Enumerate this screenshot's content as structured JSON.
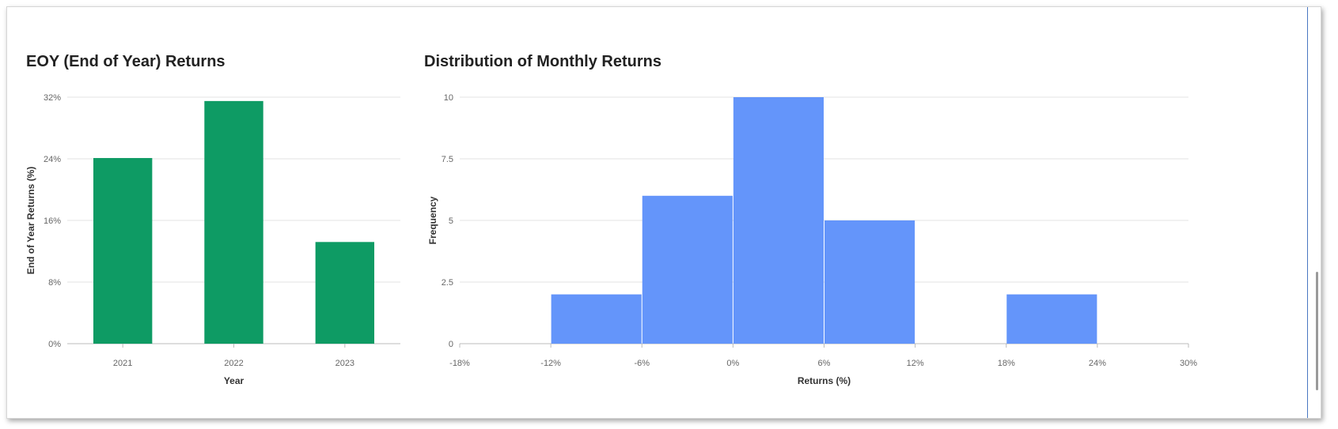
{
  "colors": {
    "eoy_bar": "#0e9b64",
    "dist_bar": "#6495fa",
    "grid": "#e3e3e3",
    "axis": "#bbbbbb"
  },
  "eoy": {
    "title": "EOY (End of Year) Returns",
    "chart_data": {
      "type": "bar",
      "categories": [
        "2021",
        "2022",
        "2023"
      ],
      "values": [
        24.1,
        31.5,
        13.2
      ],
      "xlabel": "Year",
      "ylabel": "End of Year Returns (%)",
      "ylim": [
        0,
        32
      ],
      "yticks": [
        "0%",
        "8%",
        "16%",
        "24%",
        "32%"
      ],
      "grid": true
    }
  },
  "dist": {
    "title": "Distribution of Monthly Returns",
    "chart_data": {
      "type": "bar",
      "subtype": "histogram",
      "bins": [
        {
          "from": -12,
          "to": -6,
          "count": 2
        },
        {
          "from": -6,
          "to": 0,
          "count": 6
        },
        {
          "from": 0,
          "to": 6,
          "count": 10
        },
        {
          "from": 6,
          "to": 12,
          "count": 5
        },
        {
          "from": 12,
          "to": 18,
          "count": 0
        },
        {
          "from": 18,
          "to": 24,
          "count": 2
        }
      ],
      "xlabel": "Returns (%)",
      "ylabel": "Frequency",
      "xlim": [
        -18,
        30
      ],
      "ylim": [
        0,
        10
      ],
      "xticks": [
        "-18%",
        "-12%",
        "-6%",
        "0%",
        "6%",
        "12%",
        "18%",
        "24%",
        "30%"
      ],
      "yticks": [
        "0",
        "2.5",
        "5",
        "7.5",
        "10"
      ],
      "grid": true
    }
  }
}
